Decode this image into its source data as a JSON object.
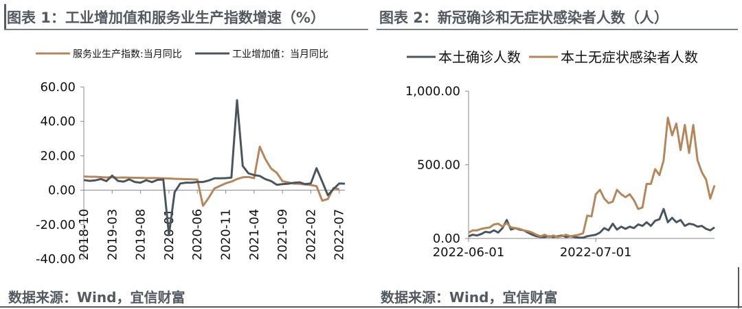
{
  "titles": {
    "left": "图表 1：工业增加值和服务业生产指数增速（%）",
    "right": "图表 2：新冠确诊和无症状感染者人数（人）"
  },
  "sources": {
    "left": "数据来源：Wind，宜信财富",
    "right": "数据来源：Wind，宜信财富"
  },
  "colors": {
    "orange": "#b5865a",
    "slate": "#4a545c"
  },
  "chart_data": [
    {
      "type": "line",
      "ylim": [
        -40,
        60
      ],
      "yticks": [
        "60.00",
        "40.00",
        "20.00",
        "0.00",
        "-20.00",
        "-40.00"
      ],
      "ytick_values": [
        60,
        40,
        20,
        0,
        -20,
        -40
      ],
      "xtick_labels": [
        "2018-10",
        "2019-03",
        "2019-08",
        "2020-01",
        "2020-06",
        "2020-11",
        "2021-04",
        "2021-09",
        "2022-02",
        "2022-07"
      ],
      "xtick_index": [
        0,
        5,
        10,
        15,
        20,
        25,
        30,
        35,
        40,
        45
      ],
      "legend_position": "top",
      "series": [
        {
          "name": "服务业生产指数:当月同比",
          "color": "#b5865a",
          "values": [
            8.0,
            7.8,
            7.8,
            7.6,
            7.4,
            7.5,
            7.3,
            7.4,
            7.3,
            7.2,
            7.2,
            7.0,
            7.1,
            7.0,
            6.9,
            6.8,
            6.6,
            6.5,
            6.4,
            6.3,
            6.2,
            -9.1,
            -4.5,
            1.0,
            2.5,
            4.0,
            5.0,
            6.5,
            7.5,
            7.7,
            7.0,
            25.3,
            18.0,
            12.6,
            10.1,
            5.2,
            4.6,
            3.8,
            3.7,
            3.3,
            3.0,
            2.4,
            -6.1,
            -5.1,
            1.3,
            0.6
          ]
        },
        {
          "name": "工业增加值：当月同比",
          "color": "#4a545c",
          "values": [
            5.9,
            5.4,
            5.7,
            6.5,
            5.3,
            8.5,
            5.4,
            5.0,
            6.3,
            4.8,
            4.4,
            5.8,
            4.7,
            6.0,
            6.2,
            -25.9,
            -1.1,
            3.9,
            4.4,
            4.4,
            4.8,
            4.8,
            5.6,
            6.9,
            6.9,
            7.0,
            7.3,
            52.3,
            14.1,
            9.8,
            8.8,
            8.3,
            6.4,
            5.3,
            3.1,
            3.5,
            3.8,
            4.3,
            4.6,
            3.5,
            3.9,
            12.8,
            5.0,
            -2.9,
            0.7,
            3.9,
            3.8
          ]
        }
      ]
    },
    {
      "type": "line",
      "ylim": [
        0,
        1000
      ],
      "yticks": [
        "1,000.00",
        "500.00",
        "0.00"
      ],
      "ytick_values": [
        1000,
        500,
        0
      ],
      "xtick_labels": [
        "2022-06-01",
        "2022-07-01"
      ],
      "xtick_index": [
        0,
        30
      ],
      "legend_position": "top",
      "series": [
        {
          "name": "本土确诊人数",
          "color": "#4a545c",
          "values": [
            15,
            25,
            20,
            30,
            45,
            40,
            55,
            40,
            70,
            125,
            60,
            70,
            60,
            55,
            40,
            25,
            15,
            10,
            10,
            15,
            10,
            15,
            20,
            10,
            15,
            10,
            5,
            5,
            15,
            20,
            25,
            40,
            70,
            55,
            100,
            60,
            80,
            65,
            80,
            70,
            95,
            85,
            110,
            85,
            120,
            130,
            200,
            110,
            140,
            110,
            125,
            85,
            100,
            95,
            80,
            85,
            65,
            55,
            75
          ]
        },
        {
          "name": "本土无症状感染者人数",
          "color": "#b5865a",
          "values": [
            40,
            55,
            55,
            65,
            70,
            75,
            95,
            100,
            80,
            105,
            75,
            70,
            65,
            55,
            50,
            40,
            25,
            15,
            25,
            10,
            20,
            10,
            15,
            25,
            15,
            20,
            25,
            35,
            155,
            150,
            300,
            330,
            270,
            240,
            250,
            330,
            300,
            280,
            300,
            260,
            200,
            210,
            370,
            370,
            470,
            430,
            530,
            820,
            700,
            780,
            600,
            770,
            580,
            770,
            530,
            450,
            400,
            270,
            360
          ]
        }
      ]
    }
  ]
}
